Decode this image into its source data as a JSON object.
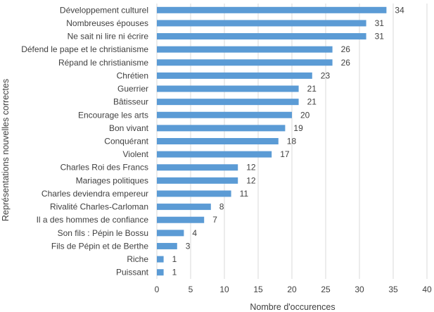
{
  "chart_data": {
    "type": "bar",
    "orientation": "horizontal",
    "title": "",
    "xlabel": "Nombre d'occurences",
    "ylabel": "Représentations nouvelles correctes",
    "xlim": [
      0,
      40
    ],
    "xticks": [
      "0",
      "5",
      "10",
      "15",
      "20",
      "25",
      "30",
      "35",
      "40"
    ],
    "grid": "vertical",
    "color": "#5B9BD5",
    "categories": [
      "Développement culturel",
      "Nombreuses épouses",
      "Ne sait ni lire ni écrire",
      "Défend le pape et le christianisme",
      "Répand le christianisme",
      "Chrétien",
      "Guerrier",
      "Bâtisseur",
      "Encourage les arts",
      "Bon vivant",
      "Conquérant",
      "Violent",
      "Charles Roi des Francs",
      "Mariages politiques",
      "Charles deviendra empereur",
      "Rivalité Charles-Carloman",
      "Il a des hommes de confiance",
      "Son fils : Pépin le Bossu",
      "Fils de Pépin et de Berthe",
      "Riche",
      "Puissant"
    ],
    "values": [
      34,
      31,
      31,
      26,
      26,
      23,
      21,
      21,
      20,
      19,
      18,
      17,
      12,
      12,
      11,
      8,
      7,
      4,
      3,
      1,
      1
    ]
  }
}
